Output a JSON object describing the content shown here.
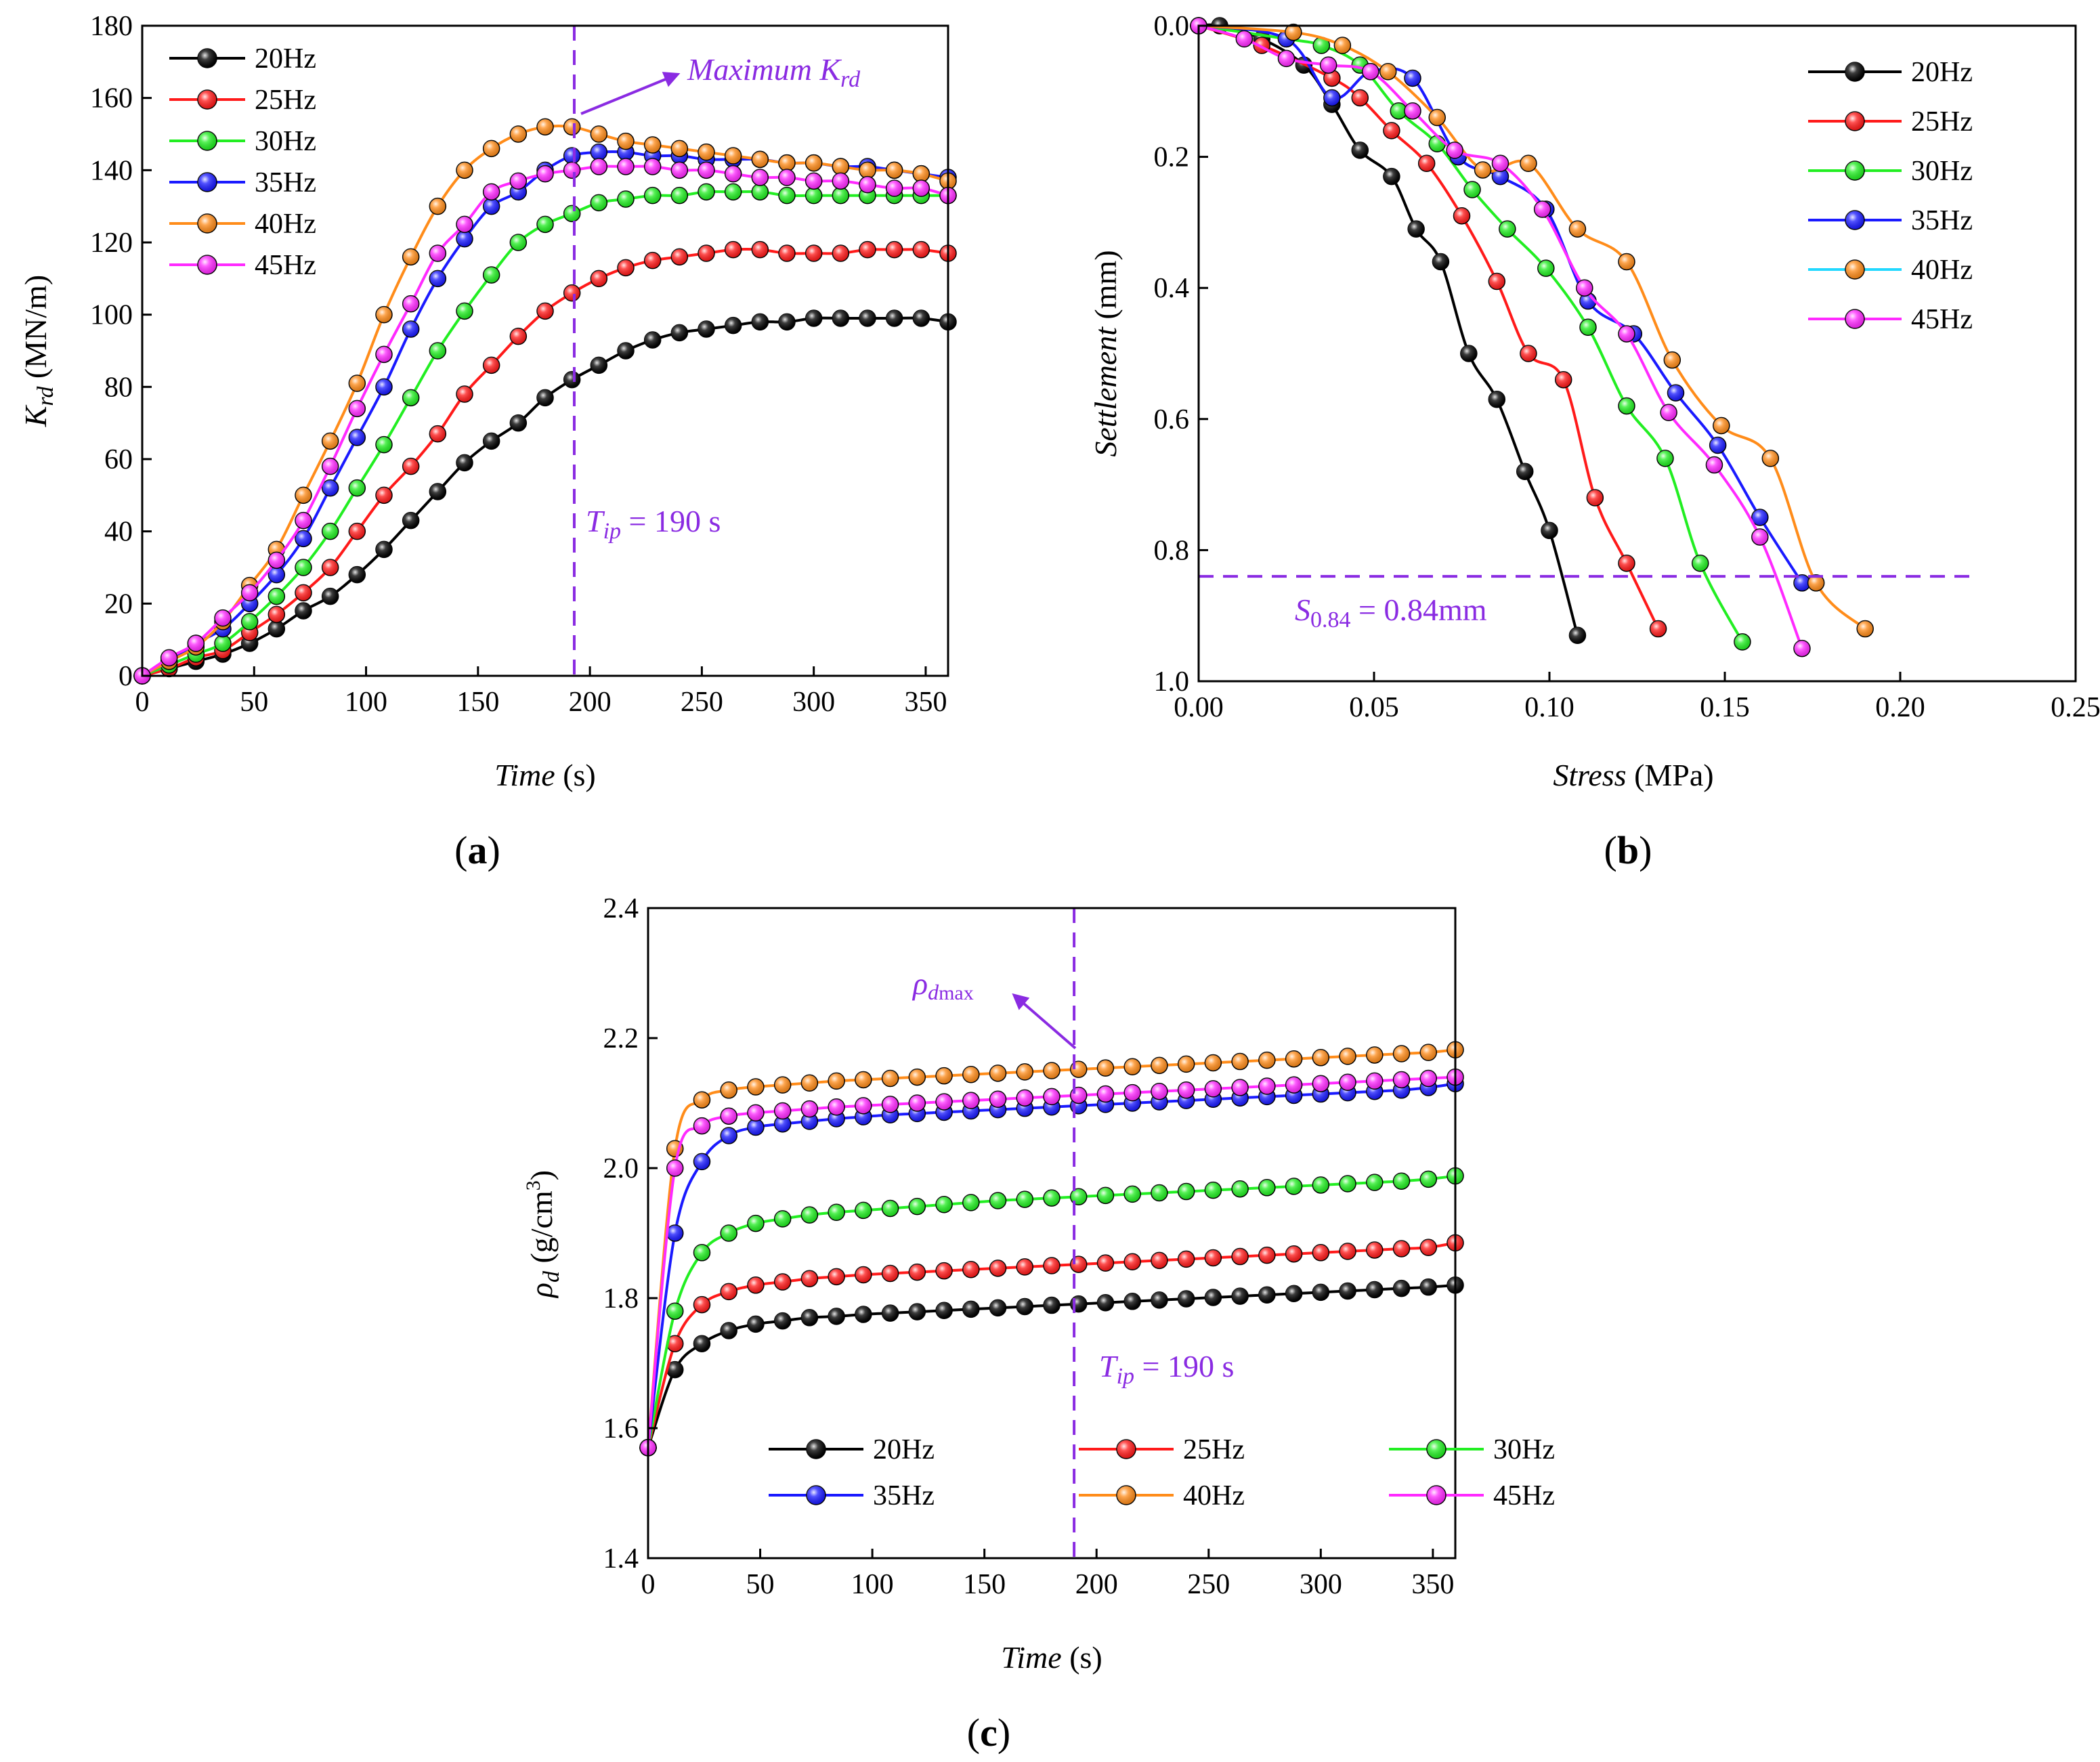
{
  "series_colors": {
    "20Hz": "#000000",
    "25Hz": "#ff1a1a",
    "30Hz": "#22ee22",
    "35Hz": "#1a1aff",
    "40Hz": "#ff8c1a",
    "45Hz": "#ff2aff"
  },
  "legend_extra_colors": {
    "40Hz_b_line": "#22d8ff"
  },
  "annotation_color": "#8a2be2",
  "chart_data": [
    {
      "id": "a",
      "type": "line",
      "panel_label": "a",
      "xlabel_italic": "Time",
      "xlabel_unit": "(s)",
      "ylabel_main": "K",
      "ylabel_sub": "rd",
      "ylabel_unit": "(MN/m)",
      "xlim": [
        0,
        360
      ],
      "ylim": [
        0,
        180
      ],
      "xticks": [
        0,
        50,
        100,
        150,
        200,
        250,
        300,
        350
      ],
      "yticks": [
        0,
        20,
        40,
        60,
        80,
        100,
        120,
        140,
        160,
        180
      ],
      "legend": [
        "20Hz",
        "25Hz",
        "30Hz",
        "35Hz",
        "40Hz",
        "45Hz"
      ],
      "legend_position": "top-left",
      "vline_x": 193,
      "annotation_tip": {
        "prefix": "T",
        "sub": "ip",
        "suffix": " = 190 s"
      },
      "annotation_max": {
        "prefix": "Maximum K",
        "sub": "rd"
      },
      "x": [
        0,
        12,
        24,
        36,
        48,
        60,
        72,
        84,
        96,
        108,
        120,
        132,
        144,
        156,
        168,
        180,
        192,
        204,
        216,
        228,
        240,
        252,
        264,
        276,
        288,
        300,
        312,
        324,
        336,
        348,
        360
      ],
      "series": [
        {
          "name": "20Hz",
          "values": [
            0,
            2,
            4,
            6,
            9,
            13,
            18,
            22,
            28,
            35,
            43,
            51,
            59,
            65,
            70,
            77,
            82,
            86,
            90,
            93,
            95,
            96,
            97,
            98,
            98,
            99,
            99,
            99,
            99,
            99,
            98
          ]
        },
        {
          "name": "25Hz",
          "values": [
            0,
            2,
            5,
            7,
            12,
            17,
            23,
            30,
            40,
            50,
            58,
            67,
            78,
            86,
            94,
            101,
            106,
            110,
            113,
            115,
            116,
            117,
            118,
            118,
            117,
            117,
            117,
            118,
            118,
            118,
            117
          ]
        },
        {
          "name": "30Hz",
          "values": [
            0,
            3,
            6,
            9,
            15,
            22,
            30,
            40,
            52,
            64,
            77,
            90,
            101,
            111,
            120,
            125,
            128,
            131,
            132,
            133,
            133,
            134,
            134,
            134,
            133,
            133,
            133,
            133,
            133,
            133,
            133
          ]
        },
        {
          "name": "35Hz",
          "values": [
            0,
            4,
            9,
            13,
            20,
            28,
            38,
            52,
            66,
            80,
            96,
            110,
            121,
            130,
            134,
            140,
            144,
            145,
            145,
            144,
            144,
            143,
            143,
            143,
            142,
            142,
            141,
            141,
            140,
            139,
            138
          ]
        },
        {
          "name": "40Hz",
          "values": [
            0,
            4,
            8,
            15,
            25,
            35,
            50,
            65,
            81,
            100,
            116,
            130,
            140,
            146,
            150,
            152,
            152,
            150,
            148,
            147,
            146,
            145,
            144,
            143,
            142,
            142,
            141,
            140,
            140,
            139,
            137
          ]
        },
        {
          "name": "45Hz",
          "values": [
            0,
            5,
            9,
            16,
            23,
            32,
            43,
            58,
            74,
            89,
            103,
            117,
            125,
            134,
            137,
            139,
            140,
            141,
            141,
            141,
            140,
            140,
            139,
            138,
            138,
            137,
            137,
            136,
            135,
            135,
            133
          ]
        }
      ]
    },
    {
      "id": "b",
      "type": "line",
      "panel_label": "b",
      "xlabel_italic": "Stress",
      "xlabel_unit": "(MPa)",
      "ylabel_italic": "Settlement",
      "ylabel_unit": "(mm)",
      "xlim": [
        0,
        0.25
      ],
      "ylim": [
        0,
        1.0
      ],
      "y_inverted": true,
      "xticks": [
        0.0,
        0.05,
        0.1,
        0.15,
        0.2,
        0.25
      ],
      "xtick_labels": [
        "0.00",
        "0.05",
        "0.10",
        "0.15",
        "0.20",
        "0.25"
      ],
      "yticks": [
        0.0,
        0.2,
        0.4,
        0.6,
        0.8,
        1.0
      ],
      "ytick_labels": [
        "0.0",
        "0.2",
        "0.4",
        "0.6",
        "0.8",
        "1.0"
      ],
      "legend": [
        "20Hz",
        "25Hz",
        "30Hz",
        "35Hz",
        "40Hz",
        "45Hz"
      ],
      "legend_position": "top-right",
      "hline_y": 0.84,
      "hline_xmax": 0.22,
      "annotation_s": {
        "prefix": "S",
        "sub": "0.84",
        "suffix": " = 0.84mm"
      },
      "series": [
        {
          "name": "20Hz",
          "x": [
            0.0,
            0.006,
            0.018,
            0.03,
            0.038,
            0.046,
            0.055,
            0.062,
            0.069,
            0.077,
            0.085,
            0.093,
            0.1,
            0.108
          ],
          "y": [
            0.0,
            0.0,
            0.02,
            0.06,
            0.12,
            0.19,
            0.23,
            0.31,
            0.36,
            0.5,
            0.57,
            0.68,
            0.77,
            0.93
          ]
        },
        {
          "name": "25Hz",
          "x": [
            0.0,
            0.018,
            0.038,
            0.046,
            0.055,
            0.065,
            0.075,
            0.085,
            0.094,
            0.104,
            0.113,
            0.122,
            0.131
          ],
          "y": [
            0.0,
            0.03,
            0.08,
            0.11,
            0.16,
            0.21,
            0.29,
            0.39,
            0.5,
            0.54,
            0.72,
            0.82,
            0.92
          ]
        },
        {
          "name": "30Hz",
          "x": [
            0.0,
            0.025,
            0.035,
            0.046,
            0.057,
            0.068,
            0.078,
            0.088,
            0.099,
            0.111,
            0.122,
            0.133,
            0.143,
            0.155
          ],
          "y": [
            0.0,
            0.02,
            0.03,
            0.06,
            0.13,
            0.18,
            0.25,
            0.31,
            0.37,
            0.46,
            0.58,
            0.66,
            0.82,
            0.94
          ]
        },
        {
          "name": "35Hz",
          "x": [
            0.0,
            0.025,
            0.038,
            0.049,
            0.061,
            0.074,
            0.086,
            0.099,
            0.111,
            0.124,
            0.136,
            0.148,
            0.16,
            0.172
          ],
          "y": [
            0.0,
            0.02,
            0.11,
            0.07,
            0.08,
            0.2,
            0.23,
            0.28,
            0.42,
            0.47,
            0.56,
            0.64,
            0.75,
            0.85
          ]
        },
        {
          "name": "40Hz",
          "x": [
            0.0,
            0.027,
            0.041,
            0.054,
            0.068,
            0.081,
            0.094,
            0.108,
            0.122,
            0.135,
            0.149,
            0.163,
            0.176,
            0.19
          ],
          "y": [
            0.0,
            0.01,
            0.03,
            0.07,
            0.14,
            0.22,
            0.21,
            0.31,
            0.36,
            0.51,
            0.61,
            0.66,
            0.85,
            0.92
          ]
        },
        {
          "name": "45Hz",
          "x": [
            0.0,
            0.013,
            0.025,
            0.037,
            0.049,
            0.061,
            0.073,
            0.086,
            0.098,
            0.11,
            0.122,
            0.134,
            0.147,
            0.16,
            0.172
          ],
          "y": [
            0.0,
            0.02,
            0.05,
            0.06,
            0.07,
            0.13,
            0.19,
            0.21,
            0.28,
            0.4,
            0.47,
            0.59,
            0.67,
            0.78,
            0.95
          ]
        }
      ]
    },
    {
      "id": "c",
      "type": "line",
      "panel_label": "c",
      "xlabel_italic": "Time",
      "xlabel_unit": "(s)",
      "ylabel_main": "ρ",
      "ylabel_sub": "d",
      "ylabel_unit": "(g/cm",
      "ylabel_sup": "3",
      "ylabel_close": ")",
      "xlim": [
        0,
        360
      ],
      "ylim": [
        1.4,
        2.4
      ],
      "xticks": [
        0,
        50,
        100,
        150,
        200,
        250,
        300,
        350
      ],
      "yticks": [
        1.4,
        1.6,
        1.8,
        2.0,
        2.2,
        2.4
      ],
      "ytick_labels": [
        "1.4",
        "1.6",
        "1.8",
        "2.0",
        "2.2",
        "2.4"
      ],
      "legend": [
        "20Hz",
        "25Hz",
        "30Hz",
        "35Hz",
        "40Hz",
        "45Hz"
      ],
      "legend_position": "bottom-center",
      "vline_x": 190,
      "annotation_tip": {
        "prefix": "T",
        "sub": "ip",
        "suffix": " = 190 s"
      },
      "annotation_rho": {
        "prefix": "ρ",
        "sub": "d",
        "subsub": "max"
      },
      "x": [
        0,
        12,
        24,
        36,
        48,
        60,
        72,
        84,
        96,
        108,
        120,
        132,
        144,
        156,
        168,
        180,
        192,
        204,
        216,
        228,
        240,
        252,
        264,
        276,
        288,
        300,
        312,
        324,
        336,
        348,
        360
      ],
      "series": [
        {
          "name": "20Hz",
          "values": [
            1.57,
            1.69,
            1.73,
            1.75,
            1.76,
            1.765,
            1.77,
            1.772,
            1.775,
            1.777,
            1.779,
            1.781,
            1.783,
            1.785,
            1.787,
            1.789,
            1.791,
            1.793,
            1.795,
            1.797,
            1.799,
            1.801,
            1.803,
            1.805,
            1.807,
            1.809,
            1.811,
            1.813,
            1.815,
            1.817,
            1.82
          ]
        },
        {
          "name": "25Hz",
          "values": [
            1.57,
            1.73,
            1.79,
            1.81,
            1.82,
            1.825,
            1.83,
            1.833,
            1.836,
            1.838,
            1.84,
            1.842,
            1.844,
            1.846,
            1.848,
            1.85,
            1.852,
            1.854,
            1.856,
            1.858,
            1.86,
            1.862,
            1.864,
            1.866,
            1.868,
            1.87,
            1.872,
            1.874,
            1.876,
            1.878,
            1.885
          ]
        },
        {
          "name": "30Hz",
          "values": [
            1.57,
            1.78,
            1.87,
            1.9,
            1.915,
            1.922,
            1.928,
            1.932,
            1.935,
            1.938,
            1.941,
            1.944,
            1.947,
            1.95,
            1.952,
            1.954,
            1.956,
            1.958,
            1.96,
            1.962,
            1.964,
            1.966,
            1.968,
            1.97,
            1.972,
            1.974,
            1.976,
            1.978,
            1.98,
            1.983,
            1.988
          ]
        },
        {
          "name": "35Hz",
          "values": [
            1.57,
            1.9,
            2.01,
            2.05,
            2.063,
            2.068,
            2.072,
            2.076,
            2.079,
            2.082,
            2.084,
            2.086,
            2.088,
            2.09,
            2.092,
            2.094,
            2.096,
            2.098,
            2.1,
            2.102,
            2.104,
            2.106,
            2.108,
            2.11,
            2.112,
            2.114,
            2.116,
            2.118,
            2.12,
            2.124,
            2.13
          ]
        },
        {
          "name": "40Hz",
          "values": [
            1.57,
            2.03,
            2.105,
            2.12,
            2.125,
            2.128,
            2.131,
            2.134,
            2.136,
            2.138,
            2.14,
            2.142,
            2.144,
            2.146,
            2.148,
            2.15,
            2.152,
            2.154,
            2.156,
            2.158,
            2.16,
            2.162,
            2.164,
            2.166,
            2.168,
            2.17,
            2.172,
            2.174,
            2.176,
            2.178,
            2.182
          ]
        },
        {
          "name": "45Hz",
          "values": [
            1.57,
            2.0,
            2.065,
            2.08,
            2.085,
            2.088,
            2.091,
            2.094,
            2.096,
            2.098,
            2.1,
            2.102,
            2.104,
            2.106,
            2.108,
            2.11,
            2.112,
            2.114,
            2.116,
            2.118,
            2.12,
            2.122,
            2.124,
            2.126,
            2.128,
            2.13,
            2.132,
            2.134,
            2.136,
            2.138,
            2.14
          ]
        }
      ]
    }
  ]
}
